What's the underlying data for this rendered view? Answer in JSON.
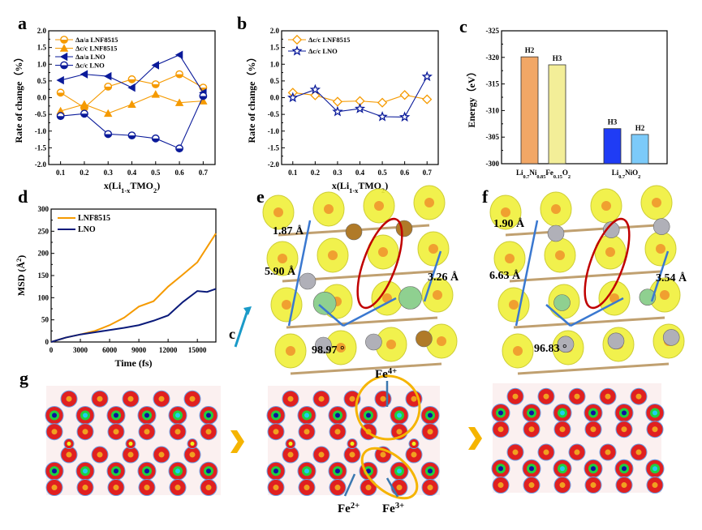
{
  "panels": {
    "a": "a",
    "b": "b",
    "c": "c",
    "d": "d",
    "e": "e",
    "f": "f",
    "g": "g"
  },
  "chart_data": [
    {
      "id": "a",
      "type": "line",
      "x": [
        0.1,
        0.2,
        0.3,
        0.4,
        0.5,
        0.6,
        0.7
      ],
      "xlabel": "x(Li_{1-x}TMO_{2})",
      "ylabel": "Rate of change（%）",
      "xticks": [
        "0.1",
        "0.2",
        "0.3",
        "0.4",
        "0.5",
        "0.6",
        "0.7"
      ],
      "yticks": [
        "-2.0",
        "-1.5",
        "-1.0",
        "-0.5",
        "0.0",
        "0.5",
        "1.0",
        "1.5",
        "2.0"
      ],
      "xlim": [
        0.05,
        0.75
      ],
      "ylim": [
        -2.0,
        2.0
      ],
      "legend": "top-left",
      "grid": false,
      "series": [
        {
          "name": "Δa/a  LNF8515",
          "color": "#f59a00",
          "marker": "circle-open",
          "values": [
            0.15,
            -0.3,
            0.33,
            0.55,
            0.4,
            0.7,
            0.3
          ]
        },
        {
          "name": "Δc/c  LNF8515",
          "color": "#f59a00",
          "marker": "triangle-up",
          "values": [
            -0.4,
            -0.2,
            -0.47,
            -0.2,
            0.1,
            -0.15,
            -0.1
          ]
        },
        {
          "name": "Δa/a  LNO",
          "color": "#0a1a9a",
          "marker": "triangle-left",
          "values": [
            0.52,
            0.7,
            0.64,
            0.3,
            0.97,
            1.28,
            0.15
          ]
        },
        {
          "name": "Δc/c  LNO",
          "color": "#0a1a9a",
          "marker": "circle-open",
          "values": [
            -0.55,
            -0.48,
            -1.09,
            -1.13,
            -1.22,
            -1.52,
            0.05
          ]
        }
      ]
    },
    {
      "id": "b",
      "type": "line",
      "x": [
        0.1,
        0.2,
        0.3,
        0.4,
        0.5,
        0.6,
        0.7
      ],
      "xlabel": "x(Li_{1-x}TMO_{2})",
      "ylabel": "Rate of change（%）",
      "xticks": [
        "0.1",
        "0.2",
        "0.3",
        "0.4",
        "0.5",
        "0.6",
        "0.7"
      ],
      "yticks": [
        "-2.0",
        "-1.5",
        "-1.0",
        "-0.5",
        "0.0",
        "0.5",
        "1.0",
        "1.5",
        "2.0"
      ],
      "xlim": [
        0.05,
        0.75
      ],
      "ylim": [
        -2.0,
        2.0
      ],
      "legend": "top-left",
      "grid": false,
      "series": [
        {
          "name": "Δc/c   LNF8515",
          "color": "#f59a00",
          "marker": "diamond",
          "values": [
            0.15,
            0.07,
            -0.12,
            -0.1,
            -0.15,
            0.08,
            -0.05
          ]
        },
        {
          "name": "Δc/c  LNO",
          "color": "#0a1a9a",
          "marker": "star",
          "values": [
            0.0,
            0.24,
            -0.42,
            -0.33,
            -0.57,
            -0.58,
            0.63
          ]
        }
      ]
    },
    {
      "id": "c",
      "type": "bar",
      "ylabel": "Energy（eV）",
      "yticks": [
        "-300",
        "-305",
        "-310",
        "-315",
        "-320",
        "-325"
      ],
      "ylim": [
        -300,
        -325
      ],
      "grid": false,
      "groups": [
        {
          "label": "Li_{0.7}Ni_{0.85}Fe_{0.15}O_{2}",
          "bars": [
            {
              "label": "H2",
              "value": -320.1,
              "color": "#f2a766"
            },
            {
              "label": "H3",
              "value": -318.6,
              "color": "#f3ee98"
            }
          ]
        },
        {
          "label": "Li_{0.7}NiO_{2}",
          "bars": [
            {
              "label": "H3",
              "value": -306.6,
              "color": "#1f3cf5"
            },
            {
              "label": "H2",
              "value": -305.5,
              "color": "#7ccaf9"
            }
          ]
        }
      ]
    },
    {
      "id": "d",
      "type": "line",
      "xlabel": "Time (fs)",
      "ylabel": "MSD (Å^{2})",
      "xticks": [
        "0",
        "3000",
        "6000",
        "9000",
        "12000",
        "15000"
      ],
      "yticks": [
        "0",
        "50",
        "100",
        "150",
        "200",
        "250",
        "300"
      ],
      "xlim": [
        0,
        16900
      ],
      "ylim": [
        0,
        300
      ],
      "legend": "top-left",
      "grid": false,
      "series": [
        {
          "name": "LNF8515",
          "color": "#f59a00",
          "x": [
            0,
            1500,
            3000,
            4500,
            6000,
            7500,
            9000,
            10500,
            12000,
            13500,
            15000,
            16900
          ],
          "values": [
            0,
            10,
            17,
            25,
            38,
            55,
            80,
            92,
            125,
            152,
            180,
            245
          ]
        },
        {
          "name": "LNO",
          "color": "#0a1a7a",
          "x": [
            0,
            1500,
            3000,
            4500,
            6000,
            7500,
            9000,
            10500,
            12000,
            13500,
            15000,
            16000,
            16900
          ],
          "values": [
            0,
            10,
            17,
            22,
            27,
            32,
            38,
            48,
            60,
            90,
            115,
            113,
            120
          ]
        }
      ]
    }
  ],
  "structures": {
    "e": {
      "bond": "1.87 Å",
      "diag": "5.90 Å",
      "side": "3.26 Å",
      "angle": "98.97 °",
      "axis": "c"
    },
    "f": {
      "bond": "1.90 Å",
      "diag": "6.63 Å",
      "side": "3.54 Å",
      "angle": "96.83 °"
    }
  },
  "charge_maps": {
    "labels": {
      "fe4": "Fe^{4+}",
      "fe2": "Fe^{2+}",
      "fe3": "Fe^{3+}"
    },
    "arrow_color": "#f5b400"
  },
  "colors": {
    "orange": "#f59a00",
    "navy": "#0a1a9a",
    "highlight": "#f5b400",
    "ellipse": "#c00000",
    "arrow": "#3a78d0"
  }
}
